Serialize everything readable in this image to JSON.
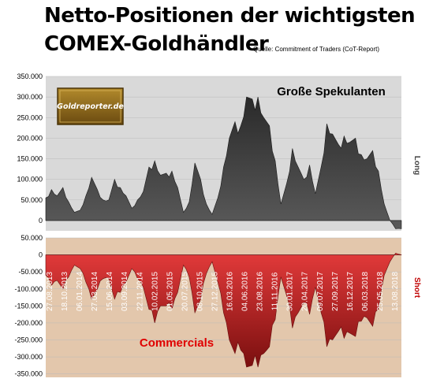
{
  "header": {
    "title_line1": "Netto-Positionen der wichtigsten",
    "title_line2": "COMEX-Goldhändler",
    "source": "Quelle: Commitment of Traders (CoT-Report)"
  },
  "logo": {
    "text": "Goldreporter.de"
  },
  "chart_data": [
    {
      "type": "area",
      "series_label": "Große Spekulanten",
      "side_label": "Long",
      "ylim": [
        -25000,
        350000
      ],
      "yticks": [
        "350.000",
        "300.000",
        "250.000",
        "200.000",
        "150.000",
        "100.000",
        "50.000",
        "0"
      ],
      "x": [
        "2013-07",
        "2013-08",
        "2013-09",
        "2013-10",
        "2013-11",
        "2013-12",
        "2014-01",
        "2014-02",
        "2014-03",
        "2014-04",
        "2014-05",
        "2014-06",
        "2014-07",
        "2014-08",
        "2014-09",
        "2014-10",
        "2014-11",
        "2014-12",
        "2015-01",
        "2015-02",
        "2015-03",
        "2015-04",
        "2015-05",
        "2015-06",
        "2015-07",
        "2015-08",
        "2015-09",
        "2015-10",
        "2015-11",
        "2015-12",
        "2016-01",
        "2016-02",
        "2016-03",
        "2016-04",
        "2016-05",
        "2016-06",
        "2016-07",
        "2016-08",
        "2016-09",
        "2016-10",
        "2016-11",
        "2016-12",
        "2017-01",
        "2017-02",
        "2017-03",
        "2017-04",
        "2017-05",
        "2017-06",
        "2017-07",
        "2017-08",
        "2017-09",
        "2017-10",
        "2017-11",
        "2017-12",
        "2018-01",
        "2018-02",
        "2018-03",
        "2018-04",
        "2018-05",
        "2018-06",
        "2018-07",
        "2018-08",
        "2018-09"
      ],
      "values": [
        55000,
        75000,
        60000,
        80000,
        45000,
        20000,
        25000,
        60000,
        105000,
        75000,
        50000,
        50000,
        100000,
        80000,
        60000,
        30000,
        50000,
        70000,
        130000,
        145000,
        110000,
        115000,
        120000,
        80000,
        20000,
        45000,
        140000,
        100000,
        40000,
        15000,
        55000,
        130000,
        200000,
        240000,
        230000,
        300000,
        295000,
        300000,
        250000,
        230000,
        145000,
        40000,
        90000,
        175000,
        130000,
        100000,
        135000,
        65000,
        130000,
        235000,
        210000,
        185000,
        205000,
        190000,
        200000,
        160000,
        150000,
        170000,
        120000,
        40000,
        0,
        -20000,
        -20000
      ]
    },
    {
      "type": "area",
      "series_label": "Commercials",
      "side_label": "Short",
      "ylim": [
        -360000,
        50000
      ],
      "yticks": [
        "50.000",
        "0",
        "-50.000",
        "-100.000",
        "-150.000",
        "-200.000",
        "-250.000",
        "-300.000",
        "-350.000"
      ],
      "xticks": [
        "27.08.2013",
        "18.10.2013",
        "06.01.2014",
        "27.03.2014",
        "15.06.2014",
        "03.09.2014",
        "22.11.2014",
        "10.02.2015",
        "01.05.2015",
        "20.07.2015",
        "08.10.2015",
        "27.12.2015",
        "16.03.2016",
        "04.06.2016",
        "23.08.2016",
        "11.11.2016",
        "30.01.2017",
        "20.04.2017",
        "09.07.2017",
        "27.09.2017",
        "16.12.2017",
        "06.03.2018",
        "25.05.2018",
        "13.08.2018"
      ],
      "x": [
        "2013-07",
        "2013-08",
        "2013-09",
        "2013-10",
        "2013-11",
        "2013-12",
        "2014-01",
        "2014-02",
        "2014-03",
        "2014-04",
        "2014-05",
        "2014-06",
        "2014-07",
        "2014-08",
        "2014-09",
        "2014-10",
        "2014-11",
        "2014-12",
        "2015-01",
        "2015-02",
        "2015-03",
        "2015-04",
        "2015-05",
        "2015-06",
        "2015-07",
        "2015-08",
        "2015-09",
        "2015-10",
        "2015-11",
        "2015-12",
        "2016-01",
        "2016-02",
        "2016-03",
        "2016-04",
        "2016-05",
        "2016-06",
        "2016-07",
        "2016-08",
        "2016-09",
        "2016-10",
        "2016-11",
        "2016-12",
        "2017-01",
        "2017-02",
        "2017-03",
        "2017-04",
        "2017-05",
        "2017-06",
        "2017-07",
        "2017-08",
        "2017-09",
        "2017-10",
        "2017-11",
        "2017-12",
        "2018-01",
        "2018-02",
        "2018-03",
        "2018-04",
        "2018-05",
        "2018-06",
        "2018-07",
        "2018-08",
        "2018-09"
      ],
      "values": [
        -60000,
        -90000,
        -75000,
        -100000,
        -65000,
        -30000,
        -40000,
        -80000,
        -130000,
        -100000,
        -70000,
        -70000,
        -130000,
        -110000,
        -80000,
        -40000,
        -70000,
        -95000,
        -160000,
        -200000,
        -150000,
        -150000,
        -160000,
        -110000,
        -30000,
        -65000,
        -170000,
        -130000,
        -55000,
        -20000,
        -80000,
        -170000,
        -250000,
        -290000,
        -280000,
        -330000,
        -325000,
        -330000,
        -290000,
        -270000,
        -190000,
        -65000,
        -120000,
        -215000,
        -170000,
        -140000,
        -175000,
        -95000,
        -170000,
        -270000,
        -250000,
        -225000,
        -245000,
        -230000,
        -240000,
        -195000,
        -185000,
        -210000,
        -160000,
        -60000,
        -20000,
        5000,
        0
      ]
    }
  ]
}
